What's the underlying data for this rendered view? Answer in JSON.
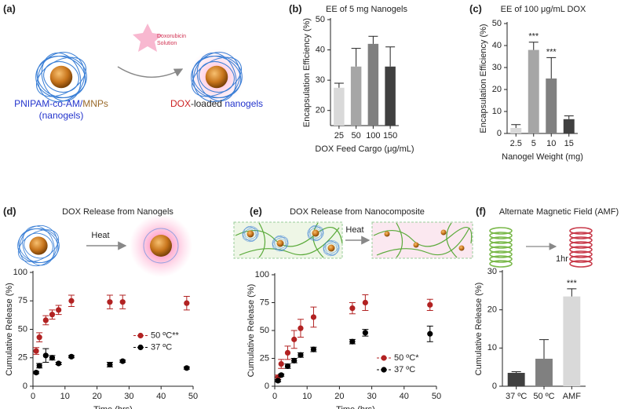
{
  "panel_labels": [
    "(a)",
    "(b)",
    "(c)",
    "(d)",
    "(e)",
    "(f)"
  ],
  "illustrations": {
    "a": {
      "drug": [
        "Doxorubicin",
        "Solution"
      ],
      "nanogel_label": [
        "PNIPAM-co-AM/",
        "MNPs"
      ],
      "nanogel_sublabel": "(nanogels)",
      "loaded_label": [
        "DOX",
        "-loaded ",
        "nanogels"
      ]
    },
    "d": {
      "arrow": "Heat"
    },
    "e": {
      "arrow": "Heat"
    },
    "f": {
      "arrow": "1hr"
    }
  },
  "chart_data": [
    {
      "type": "bar",
      "title": "EE of 5 mg Nanogels",
      "xlabel": "DOX Feed Cargo (μg/mL)",
      "ylabel": "Encapsulation Efficiency (%)",
      "categories": [
        "25",
        "50",
        "100",
        "150"
      ],
      "values": [
        27.5,
        34.5,
        42,
        34.5
      ],
      "errors": [
        1.5,
        6,
        2.5,
        6.5
      ],
      "colors": [
        "#d9d9d9",
        "#a6a6a6",
        "#808080",
        "#404040"
      ],
      "ylim": [
        15,
        50
      ],
      "yticks": [
        20,
        30,
        40,
        50
      ]
    },
    {
      "type": "bar",
      "title": "EE of 100 μg/mL DOX",
      "xlabel": "Nanogel Weight (mg)",
      "ylabel": "Encapsulation Efficiency (%)",
      "categories": [
        "2.5",
        "5",
        "10",
        "15"
      ],
      "values": [
        2.5,
        38,
        25,
        6.5
      ],
      "errors": [
        1.5,
        3.5,
        9.5,
        1.5
      ],
      "value_annotations": [
        null,
        "***",
        "***",
        null
      ],
      "colors": [
        "#d9d9d9",
        "#a6a6a6",
        "#808080",
        "#404040"
      ],
      "ylim": [
        0,
        50
      ],
      "yticks": [
        0,
        10,
        20,
        30,
        40,
        50
      ]
    },
    {
      "type": "scatter",
      "title": "DOX Release from Nanogels",
      "xlabel": "Time (hrs)",
      "ylabel": "Cumulative Release (%)",
      "x": [
        1,
        2,
        4,
        6,
        8,
        12,
        24,
        28,
        48
      ],
      "series": [
        {
          "name": "50 ºC**",
          "color": "#b22222",
          "values": [
            31,
            43,
            58,
            63,
            67,
            75,
            74,
            74,
            73
          ],
          "errors": [
            3,
            4,
            4,
            4,
            4,
            5,
            6,
            6,
            6
          ]
        },
        {
          "name": "37 ºC",
          "color": "#000000",
          "values": [
            12,
            18,
            27,
            25,
            20,
            26,
            19,
            22,
            16
          ],
          "errors": [
            1,
            2,
            6,
            2,
            1,
            1,
            2,
            1,
            1
          ]
        }
      ],
      "xlim": [
        0,
        50
      ],
      "xticks": [
        0,
        10,
        20,
        30,
        40,
        50
      ],
      "ylim": [
        0,
        100
      ],
      "yticks": [
        0,
        25,
        50,
        75,
        100
      ],
      "legend": "right"
    },
    {
      "type": "scatter",
      "title": "DOX Release from Nanocomposite",
      "xlabel": "Time (hrs)",
      "ylabel": "Cumulative Release (%)",
      "x": [
        1,
        2,
        4,
        6,
        8,
        12,
        24,
        28,
        48
      ],
      "series": [
        {
          "name": "50 ºC*",
          "color": "#b22222",
          "values": [
            8,
            20,
            30,
            42,
            52,
            62,
            70,
            75,
            73
          ],
          "errors": [
            2,
            4,
            6,
            8,
            8,
            9,
            5,
            7,
            5
          ]
        },
        {
          "name": "37 ºC",
          "color": "#000000",
          "values": [
            5,
            10,
            18,
            23,
            28,
            33,
            40,
            48,
            47
          ],
          "errors": [
            1,
            1,
            2,
            2,
            2,
            2,
            2,
            3,
            7
          ]
        }
      ],
      "xlim": [
        0,
        50
      ],
      "xticks": [
        0,
        10,
        20,
        30,
        40,
        50
      ],
      "ylim": [
        0,
        100
      ],
      "yticks": [
        0,
        25,
        50,
        75,
        100
      ],
      "legend": "lower right"
    },
    {
      "type": "bar",
      "title": "Alternate Magnetic Field (AMF)",
      "ylabel": "Cumulative Release (%)",
      "categories": [
        "37 ºC",
        "50 ºC",
        "AMF"
      ],
      "values": [
        3.5,
        7.2,
        23.5
      ],
      "errors": [
        0.3,
        5,
        2
      ],
      "value_annotations": [
        null,
        null,
        "***"
      ],
      "colors": [
        "#404040",
        "#808080",
        "#d9d9d9"
      ],
      "ylim": [
        0,
        30
      ],
      "yticks": [
        0,
        10,
        20,
        30
      ]
    }
  ]
}
